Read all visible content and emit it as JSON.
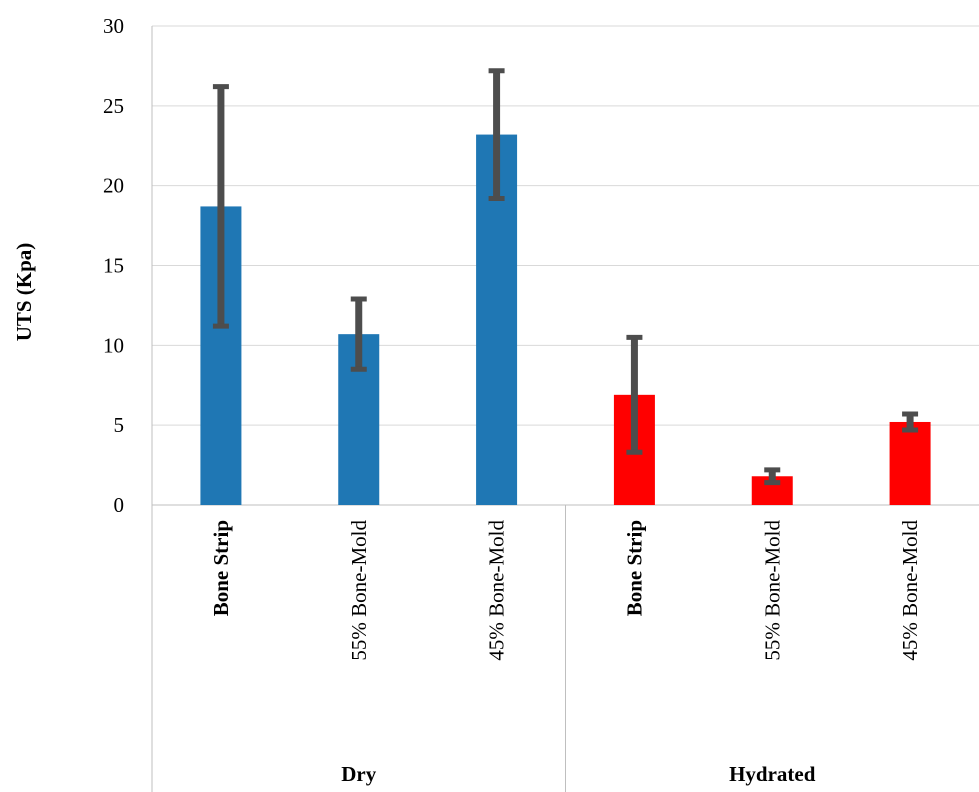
{
  "chart_data": {
    "type": "bar",
    "title": "",
    "ylabel": "UTS (Kpa)",
    "xlabel": "",
    "ylim": [
      0,
      30
    ],
    "yticks": [
      0,
      5,
      10,
      15,
      20,
      25,
      30
    ],
    "grid": true,
    "legend": "none",
    "groups": [
      {
        "name": "Dry",
        "color": "#1f77b4",
        "categories": [
          "Bone Strip",
          "55% Bone-Mold",
          "45% Bone-Mold"
        ]
      },
      {
        "name": "Hydrated",
        "color": "#ff0000",
        "categories": [
          "Bone Strip",
          "55% Bone-Mold",
          "45% Bone-Mold"
        ]
      }
    ],
    "bars": [
      {
        "group": "Dry",
        "category": "Bone Strip",
        "value": 18.7,
        "error": 7.5
      },
      {
        "group": "Dry",
        "category": "55% Bone-Mold",
        "value": 10.7,
        "error": 2.2
      },
      {
        "group": "Dry",
        "category": "45% Bone-Mold",
        "value": 23.2,
        "error": 4.0
      },
      {
        "group": "Hydrated",
        "category": "Bone Strip",
        "value": 6.9,
        "error": 3.6
      },
      {
        "group": "Hydrated",
        "category": "55% Bone-Mold",
        "value": 1.8,
        "error": 0.4
      },
      {
        "group": "Hydrated",
        "category": "45% Bone-Mold",
        "value": 5.2,
        "error": 0.5
      }
    ],
    "colors": {
      "dry": "#1f77b4",
      "hydrated": "#ff0000",
      "error_bar": "#4d4d4d",
      "grid": "#d9d9d9"
    }
  }
}
